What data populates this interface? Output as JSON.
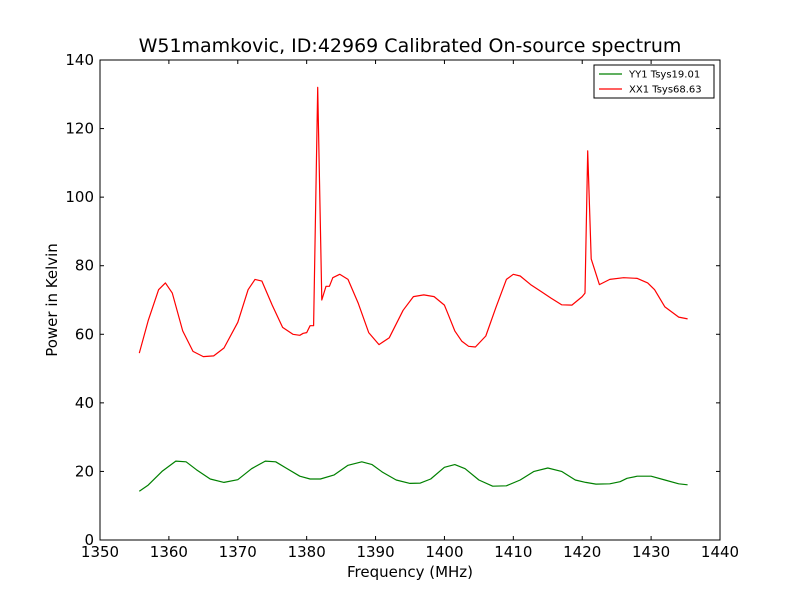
{
  "chart_data": {
    "type": "line",
    "title": "W51mamkovic, ID:42969 Calibrated On-source spectrum",
    "xlabel": "Frequency (MHz)",
    "ylabel": "Power in Kelvin",
    "xlim": [
      1350,
      1440
    ],
    "ylim": [
      0,
      140
    ],
    "xticks": [
      "1350",
      "1360",
      "1370",
      "1380",
      "1390",
      "1400",
      "1410",
      "1420",
      "1430",
      "1440"
    ],
    "yticks": [
      "0",
      "20",
      "40",
      "60",
      "80",
      "100",
      "120",
      "140"
    ],
    "grid": false,
    "legend_position": "top-right",
    "series": [
      {
        "name": "YY1 Tsys19.01",
        "color": "#008000",
        "x": [
          1355.7,
          1357,
          1359,
          1361,
          1362.5,
          1364,
          1366,
          1368,
          1370,
          1372,
          1374,
          1375.5,
          1377,
          1379,
          1380.5,
          1382,
          1384,
          1386,
          1388,
          1389.5,
          1391,
          1393,
          1395,
          1396.5,
          1398,
          1400,
          1401.5,
          1403,
          1405,
          1407,
          1409,
          1411,
          1413,
          1415,
          1417,
          1419,
          1420.5,
          1422,
          1424,
          1425.5,
          1426.5,
          1428,
          1430,
          1432,
          1434,
          1435.3
        ],
        "y": [
          14.2,
          16,
          20,
          23,
          22.8,
          20.5,
          17.8,
          16.8,
          17.6,
          20.8,
          23,
          22.8,
          21,
          18.6,
          17.8,
          17.8,
          19,
          21.8,
          22.8,
          22,
          19.8,
          17.5,
          16.5,
          16.6,
          17.8,
          21.2,
          22,
          20.8,
          17.5,
          15.7,
          15.8,
          17.5,
          20,
          21,
          20,
          17.5,
          16.8,
          16.3,
          16.4,
          17,
          18,
          18.6,
          18.6,
          17.5,
          16.4,
          16.1
        ]
      },
      {
        "name": "XX1 Tsys68.63",
        "color": "#ff0000",
        "x": [
          1355.7,
          1357,
          1358.5,
          1359.5,
          1360.5,
          1362,
          1363.5,
          1365,
          1366.5,
          1368,
          1370,
          1371.5,
          1372.5,
          1373.5,
          1375,
          1376.5,
          1378,
          1379,
          1379.5,
          1380,
          1380.5,
          1381,
          1381.6,
          1382.2,
          1382.8,
          1383.3,
          1383.8,
          1384.8,
          1386,
          1387.5,
          1389,
          1390.5,
          1392,
          1394,
          1395.5,
          1397,
          1398.5,
          1400,
          1400.5,
          1401.5,
          1402.5,
          1403.5,
          1404.5,
          1406,
          1407.5,
          1409,
          1410,
          1411,
          1412.5,
          1414,
          1415.5,
          1417,
          1418.5,
          1420,
          1420.4,
          1420.8,
          1421.3,
          1422.5,
          1424,
          1426,
          1428,
          1429.5,
          1430.5,
          1432,
          1434,
          1435.3
        ],
        "y": [
          54.5,
          64,
          73,
          75,
          72,
          61,
          55,
          53.5,
          53.7,
          56,
          63.5,
          73,
          76,
          75.5,
          68.5,
          62,
          60,
          59.7,
          60.3,
          60.5,
          62.5,
          62.5,
          132,
          70,
          74,
          74,
          76.5,
          77.5,
          76,
          69,
          60.5,
          57,
          59,
          67,
          71,
          71.5,
          71,
          68.5,
          66,
          61,
          58,
          56.5,
          56.3,
          59.5,
          68,
          76,
          77.5,
          77,
          74.5,
          72.5,
          70.5,
          68.6,
          68.5,
          71,
          72,
          113.5,
          82,
          74.5,
          76,
          76.5,
          76.3,
          75,
          73,
          68,
          65,
          64.5
        ]
      }
    ]
  }
}
